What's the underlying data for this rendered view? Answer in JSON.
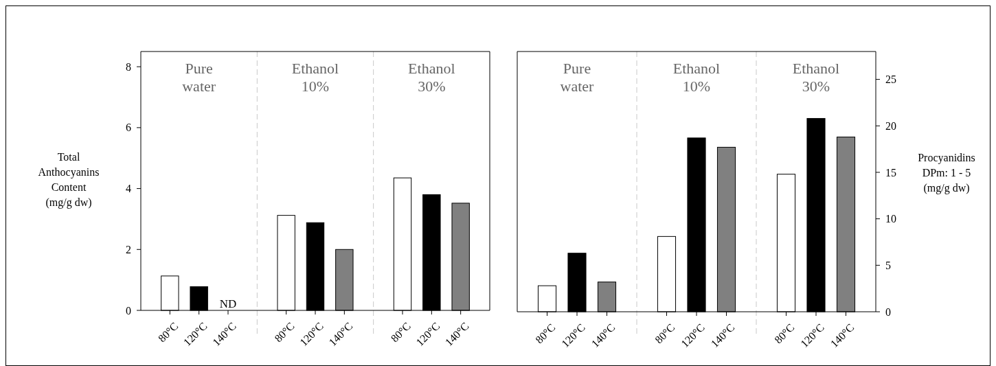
{
  "chart_data": [
    {
      "type": "bar",
      "ylabel": "Total\nAnthocyanins\nContent\n(mg/g dw)",
      "categories": [
        "80°C",
        "120°C",
        "140°C",
        null,
        "80°C",
        "120°C",
        "140°C",
        null,
        "80°C",
        "120°C",
        "140°C"
      ],
      "series": [
        {
          "values": [
            1.13,
            0.78,
            null,
            null,
            3.12,
            2.88,
            2.0,
            null,
            4.35,
            3.8,
            3.52
          ],
          "colors": [
            "#ffffff",
            "#000000",
            "#808080",
            null,
            "#ffffff",
            "#000000",
            "#808080",
            null,
            "#ffffff",
            "#000000",
            "#808080"
          ],
          "value_labels": [
            null,
            null,
            "ND",
            null,
            null,
            null,
            null,
            null,
            null,
            null,
            null
          ]
        }
      ],
      "ylim": [
        0,
        8.5
      ],
      "yticks": [
        0,
        2,
        4,
        6,
        8
      ],
      "annotations": [
        "Pure\nwater",
        "Ethanol\n10%",
        "Ethanol\n30%"
      ]
    },
    {
      "type": "bar",
      "y2label": "Procyanidins\nDPm: 1 - 5\n(mg/g dw)",
      "categories": [
        "80°C",
        "120°C",
        "140°C",
        null,
        "80°C",
        "120°C",
        "140°C",
        null,
        "80°C",
        "120°C",
        "140°C"
      ],
      "series": [
        {
          "axis": "y2",
          "values": [
            2.8,
            6.3,
            3.2,
            null,
            8.1,
            18.7,
            17.7,
            null,
            14.8,
            20.8,
            18.8
          ],
          "colors": [
            "#ffffff",
            "#000000",
            "#808080",
            null,
            "#ffffff",
            "#000000",
            "#808080",
            null,
            "#ffffff",
            "#000000",
            "#808080"
          ]
        }
      ],
      "y2lim": [
        0,
        28
      ],
      "y2ticks": [
        0,
        5,
        10,
        15,
        20,
        25
      ],
      "annotations": [
        "Pure\nwater",
        "Ethanol\n10%",
        "Ethanol\n30%"
      ]
    }
  ]
}
